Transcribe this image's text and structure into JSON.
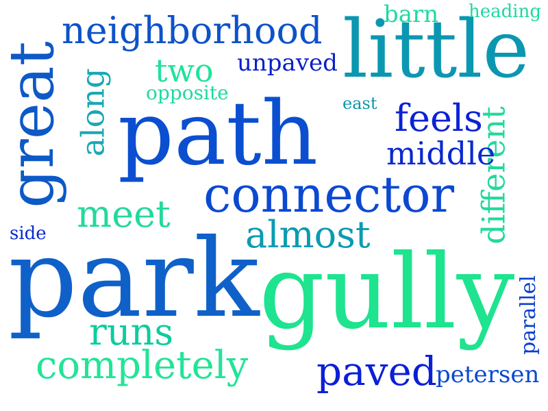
{
  "words": [
    {
      "id": "path",
      "text": "path",
      "color": "#0b4fd0"
    },
    {
      "id": "park",
      "text": "park",
      "color": "#0f61c9"
    },
    {
      "id": "gully",
      "text": "gully",
      "color": "#1ee38f"
    },
    {
      "id": "little",
      "text": "little",
      "color": "#0b97b0"
    },
    {
      "id": "great",
      "text": "great",
      "color": "#0d59c7"
    },
    {
      "id": "connector",
      "text": "connector",
      "color": "#0b49d1"
    },
    {
      "id": "neighborhood",
      "text": "neighborhood",
      "color": "#0d52c9"
    },
    {
      "id": "completely",
      "text": "completely",
      "color": "#22e497"
    },
    {
      "id": "paved",
      "text": "paved",
      "color": "#0a1fd6"
    },
    {
      "id": "almost",
      "text": "almost",
      "color": "#0a9bb2"
    },
    {
      "id": "different",
      "text": "different",
      "color": "#22d99c"
    },
    {
      "id": "meet",
      "text": "meet",
      "color": "#22d99c"
    },
    {
      "id": "runs",
      "text": "runs",
      "color": "#0dcc9e"
    },
    {
      "id": "feels",
      "text": "feels",
      "color": "#0a22d4"
    },
    {
      "id": "middle",
      "text": "middle",
      "color": "#0a28cf"
    },
    {
      "id": "along",
      "text": "along",
      "color": "#1aa8b4"
    },
    {
      "id": "two",
      "text": "two",
      "color": "#1ee39b"
    },
    {
      "id": "unpaved",
      "text": "unpaved",
      "color": "#0a20c6"
    },
    {
      "id": "opposite",
      "text": "opposite",
      "color": "#1ed9a0"
    },
    {
      "id": "east",
      "text": "east",
      "color": "#0a97a8"
    },
    {
      "id": "barn",
      "text": "barn",
      "color": "#1ed9a0"
    },
    {
      "id": "heading",
      "text": "heading",
      "color": "#1ed9a0"
    },
    {
      "id": "side",
      "text": "side",
      "color": "#0a2bd0"
    },
    {
      "id": "parallel",
      "text": "parallel",
      "color": "#0a3fc9"
    },
    {
      "id": "petersen",
      "text": "petersen",
      "color": "#0a49cf"
    }
  ]
}
